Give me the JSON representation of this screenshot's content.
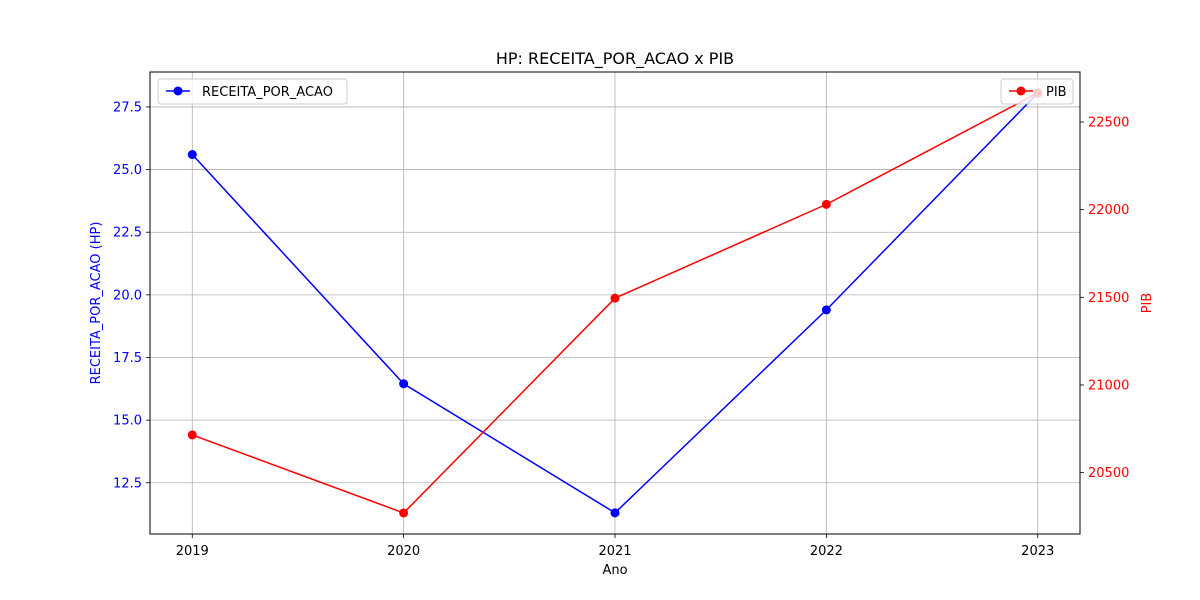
{
  "chart_data": {
    "type": "line",
    "title": "HP: RECEITA_POR_ACAO x PIB",
    "xlabel": "Ano",
    "x": [
      2019,
      2020,
      2021,
      2022,
      2023
    ],
    "x_tick_labels": [
      "2019",
      "2020",
      "2021",
      "2022",
      "2023"
    ],
    "grid": true,
    "series": [
      {
        "name": "RECEITA_POR_ACAO",
        "axis": "left",
        "color": "#0000ff",
        "marker": "circle",
        "values": [
          25.6,
          16.45,
          11.3,
          19.4,
          28.05
        ]
      },
      {
        "name": "PIB",
        "axis": "right",
        "color": "#ff0000",
        "marker": "circle",
        "values": [
          20715,
          20270,
          21495,
          22030,
          22665
        ]
      }
    ],
    "left_axis": {
      "label": "RECEITA_POR_ACAO (HP)",
      "color": "#0000ff",
      "ylim": [
        10.455,
        28.895
      ],
      "ticks": [
        12.5,
        15.0,
        17.5,
        20.0,
        22.5,
        25.0,
        27.5
      ],
      "tick_labels": [
        "12.5",
        "15.0",
        "17.5",
        "20.0",
        "22.5",
        "25.0",
        "27.5"
      ]
    },
    "right_axis": {
      "label": "PIB",
      "color": "#ff0000",
      "ylim": [
        20150,
        22785
      ],
      "ticks": [
        20500,
        21000,
        21500,
        22000,
        22500
      ],
      "tick_labels": [
        "20500",
        "21000",
        "21500",
        "22000",
        "22500"
      ]
    },
    "legends": [
      {
        "position": "upper-left",
        "entries": [
          "RECEITA_POR_ACAO"
        ]
      },
      {
        "position": "upper-right",
        "entries": [
          "PIB"
        ]
      }
    ]
  }
}
